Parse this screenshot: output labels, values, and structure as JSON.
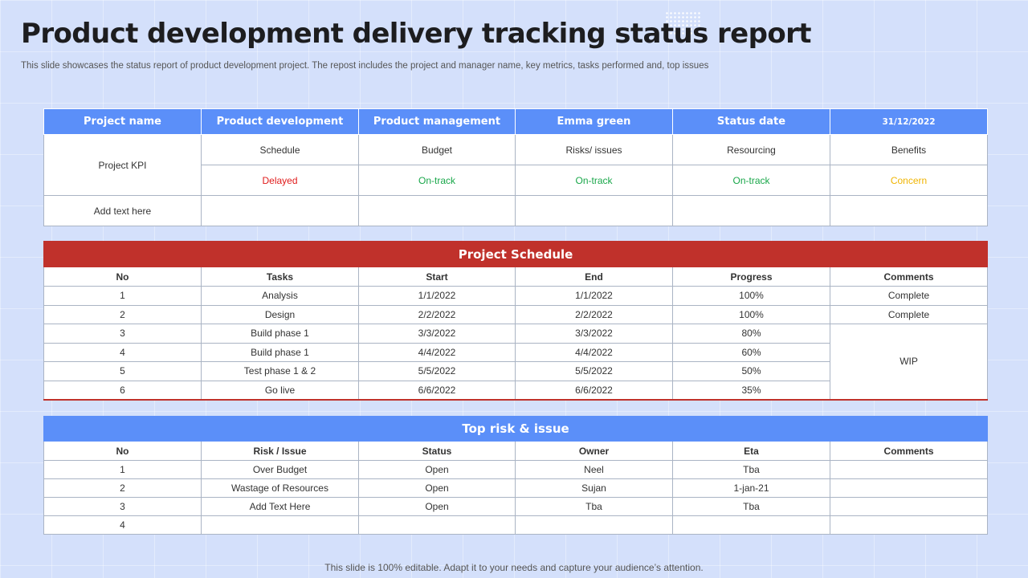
{
  "title": "Product development delivery tracking status report",
  "subtitle": "This slide showcases the status report of product development project. The repost includes the project and manager name, key metrics, tasks performed and, top issues",
  "footer": "This slide is 100% editable. Adapt it to your needs and capture your audience’s attention.",
  "overview": {
    "headers": [
      "Project name",
      "Product development",
      "Product management",
      "Emma green",
      "Status date",
      "31/12/2022"
    ],
    "kpi_label": "Project KPI",
    "metrics": [
      "Schedule",
      "Budget",
      "Risks/ issues",
      "Resourcing",
      "Benefits"
    ],
    "statuses": [
      "Delayed",
      "On-track",
      "On-track",
      "On-track",
      "Concern"
    ],
    "add_text": "Add text here"
  },
  "schedule": {
    "title": "Project Schedule",
    "columns": [
      "No",
      "Tasks",
      "Start",
      "End",
      "Progress",
      "Comments"
    ],
    "rows": [
      {
        "no": "1",
        "task": "Analysis",
        "start": "1/1/2022",
        "end": "1/1/2022",
        "progress": "100%",
        "comment": "Complete"
      },
      {
        "no": "2",
        "task": "Design",
        "start": "2/2/2022",
        "end": "2/2/2022",
        "progress": "100%",
        "comment": "Complete"
      },
      {
        "no": "3",
        "task": "Build phase 1",
        "start": "3/3/2022",
        "end": "3/3/2022",
        "progress": "80%",
        "comment": "WIP"
      },
      {
        "no": "4",
        "task": "Build phase 1",
        "start": "4/4/2022",
        "end": "4/4/2022",
        "progress": "60%"
      },
      {
        "no": "5",
        "task": "Test phase 1 & 2",
        "start": "5/5/2022",
        "end": "5/5/2022",
        "progress": "50%"
      },
      {
        "no": "6",
        "task": "Go live",
        "start": "6/6/2022",
        "end": "6/6/2022",
        "progress": "35%"
      }
    ]
  },
  "risks": {
    "title": "Top risk & issue",
    "columns": [
      "No",
      "Risk / Issue",
      "Status",
      "Owner",
      "Eta",
      "Comments"
    ],
    "rows": [
      {
        "no": "1",
        "risk": "Over Budget",
        "status": "Open",
        "owner": "Neel",
        "eta": "Tba",
        "comment": ""
      },
      {
        "no": "2",
        "risk": "Wastage of Resources",
        "status": "Open",
        "owner": "Sujan",
        "eta": "1-jan-21",
        "comment": ""
      },
      {
        "no": "3",
        "risk": "Add Text Here",
        "status": "Open",
        "owner": "Tba",
        "eta": "Tba",
        "comment": ""
      },
      {
        "no": "4",
        "risk": "",
        "status": "",
        "owner": "",
        "eta": "",
        "comment": ""
      }
    ]
  },
  "colors": {
    "header_blue": "#5b8ff9",
    "schedule_red": "#c0312b",
    "delayed": "#e01b1b",
    "on_track": "#19a74a",
    "concern": "#f0b400",
    "background": "#d4e0fb"
  }
}
